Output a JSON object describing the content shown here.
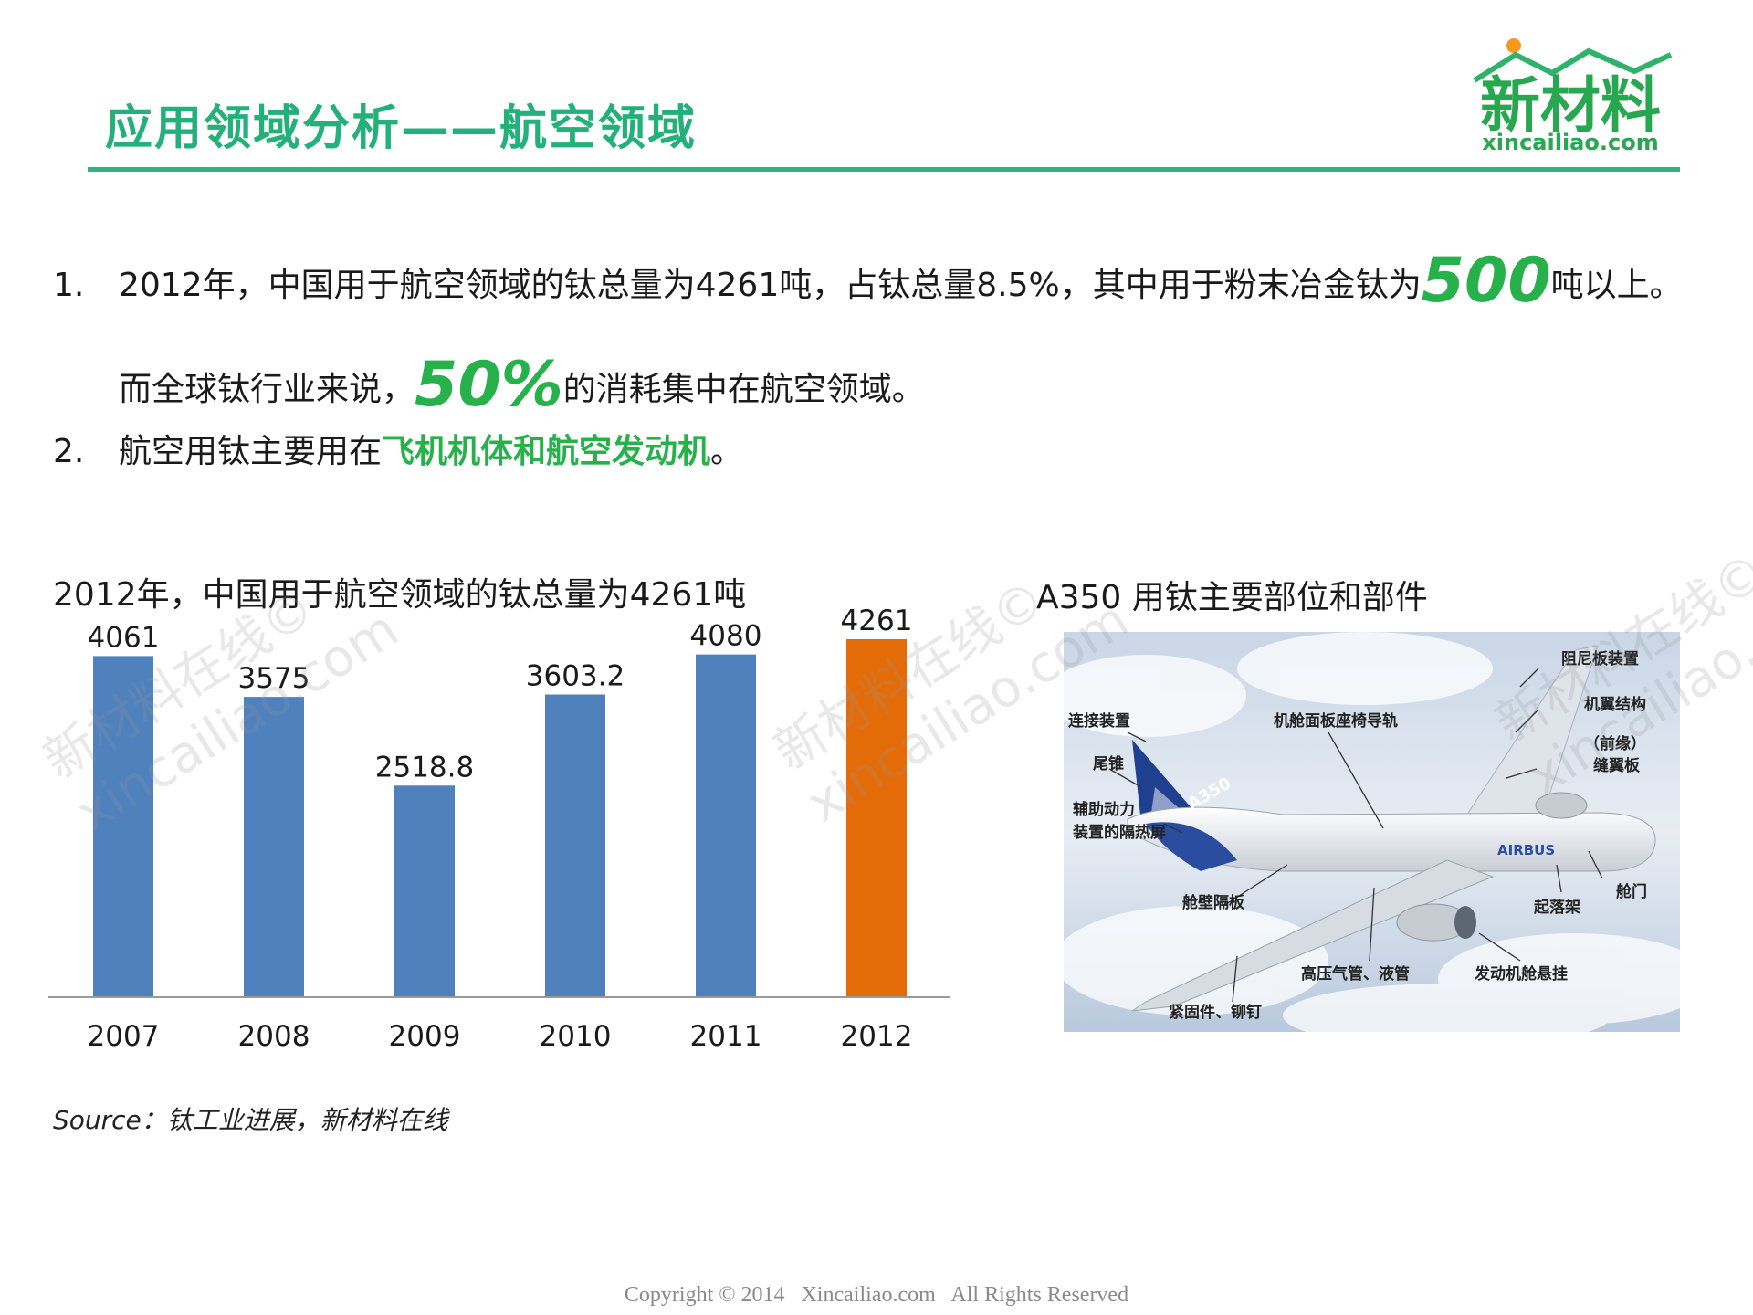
{
  "header": {
    "title": "应用领域分析——航空领域",
    "logo_text": "新材料",
    "logo_domain": "xincailiao.com"
  },
  "points": [
    {
      "num": "1.",
      "pre": "2012年，中国用于航空领域的钛总量为4261吨，占钛总量8.5%，其中用于粉末冶金钛为",
      "big": "500",
      "post": "吨以上。"
    },
    {
      "pre": "而全球钛行业来说，",
      "big": "50%",
      "post": "的消耗集中在航空领域。"
    },
    {
      "num": "2.",
      "pre": "航空用钛主要用在",
      "highlight": "飞机机体和航空发动机",
      "post": "。"
    }
  ],
  "chart_title": "2012年，中国用于航空领域的钛总量为4261吨",
  "chart_data": {
    "type": "bar",
    "title": "2012年，中国用于航空领域的钛总量为4261吨",
    "categories": [
      "2007",
      "2008",
      "2009",
      "2010",
      "2011",
      "2012"
    ],
    "values": [
      4061,
      3575,
      2518.8,
      3603.2,
      4080,
      4261
    ],
    "value_labels": [
      "4061",
      "3575",
      "2518.8",
      "3603.2",
      "4080",
      "4261"
    ],
    "ylim": [
      0,
      4500
    ],
    "grid": false,
    "colors": [
      "#4f81bd",
      "#4f81bd",
      "#4f81bd",
      "#4f81bd",
      "#4f81bd",
      "#e36c09"
    ]
  },
  "image_title": "A350 用钛主要部位和部件",
  "plane_labels": {
    "damper": "阻尼板装置",
    "wing_structure": "机翼结构",
    "slat_1": "（前缘）",
    "slat_2": "缝翼板",
    "connector": "连接装置",
    "seat_rail": "机舱面板座椅导轨",
    "tail_cone": "尾锥",
    "apu_1": "辅助动力",
    "apu_2": "装置的隔热屏",
    "door": "舱门",
    "landing_gear": "起落架",
    "bulkhead": "舱壁隔板",
    "pipes": "高压气管、液管",
    "pylon": "发动机舱悬挂",
    "fasteners": "紧固件、铆钉",
    "tail_mark": "A350",
    "body_mark": "AIRBUS"
  },
  "source": "Source：钛工业进展，新材料在线",
  "footer": "Copyright © 2014   Xincailiao.com   All Rights Reserved",
  "watermark": {
    "line1": "新材料在线©",
    "line2": "xincailiao.com"
  }
}
